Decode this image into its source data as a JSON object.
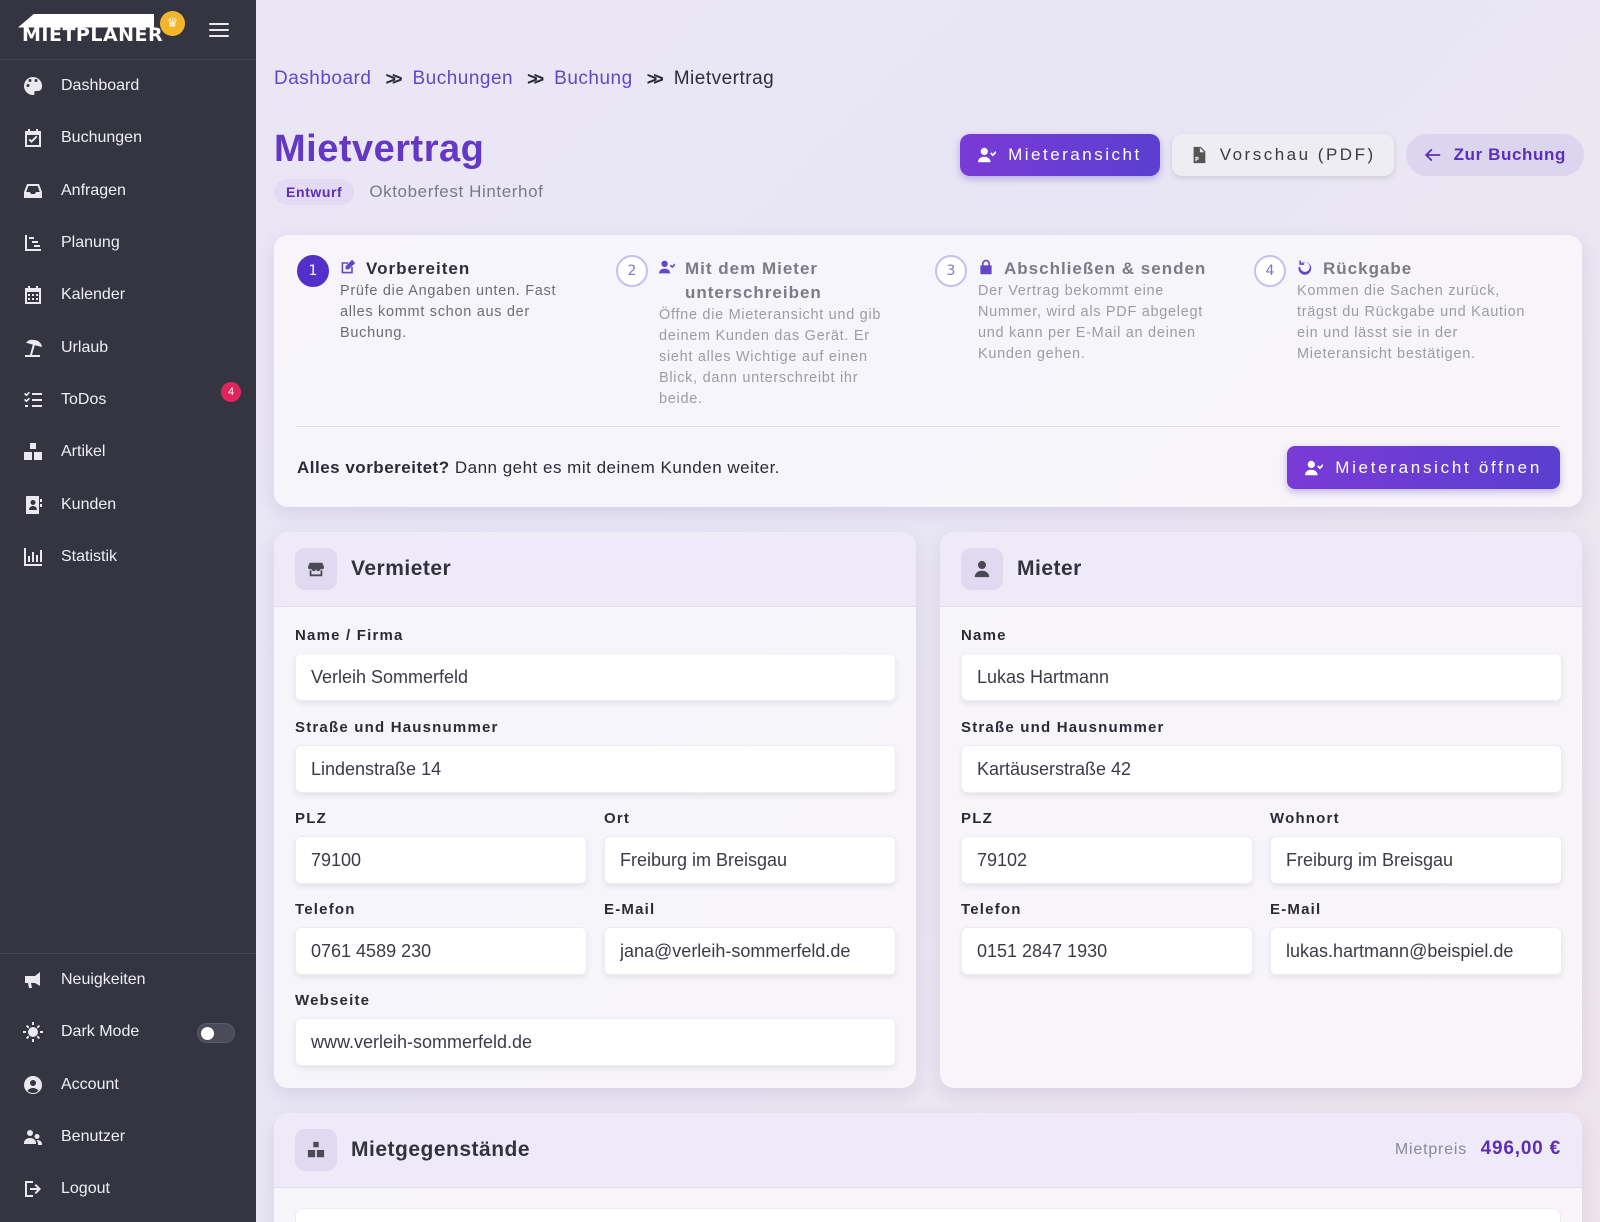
{
  "brand": {
    "name": "MIETPLANER",
    "crown_icon": "crown-icon"
  },
  "sidebar": {
    "items": [
      {
        "label": "Dashboard",
        "icon": "palette-icon"
      },
      {
        "label": "Buchungen",
        "icon": "calendar-check-icon"
      },
      {
        "label": "Anfragen",
        "icon": "inbox-icon"
      },
      {
        "label": "Planung",
        "icon": "gantt-icon"
      },
      {
        "label": "Kalender",
        "icon": "calendar-icon"
      },
      {
        "label": "Urlaub",
        "icon": "beach-umbrella-icon"
      },
      {
        "label": "ToDos",
        "icon": "checklist-icon",
        "badge": "4"
      },
      {
        "label": "Artikel",
        "icon": "boxes-icon"
      },
      {
        "label": "Kunden",
        "icon": "contact-card-icon"
      },
      {
        "label": "Statistik",
        "icon": "bar-chart-icon"
      }
    ],
    "bottom_items": [
      {
        "label": "Neuigkeiten",
        "icon": "megaphone-icon"
      },
      {
        "label": "Dark Mode",
        "icon": "sun-icon"
      },
      {
        "label": "Account",
        "icon": "user-circle-icon"
      },
      {
        "label": "Benutzer",
        "icon": "users-cog-icon"
      },
      {
        "label": "Logout",
        "icon": "logout-icon"
      }
    ]
  },
  "breadcrumb": [
    "Dashboard",
    "Buchungen",
    "Buchung",
    "Mietvertrag"
  ],
  "header": {
    "title": "Mietvertrag",
    "status": "Entwurf",
    "event": "Oktoberfest Hinterhof",
    "actions": {
      "tenant_view": "Mieteransicht",
      "preview_pdf": "Vorschau (PDF)",
      "back_to_booking": "Zur Buchung"
    }
  },
  "steps": [
    {
      "number": "1",
      "title": "Vorbereiten",
      "description": "Prüfe die Angaben unten. Fast alles kommt schon aus der Buchung."
    },
    {
      "number": "2",
      "title": "Mit dem Mieter unterschreiben",
      "description": "Öffne die Mieteransicht und gib deinem Kunden das Gerät. Er sieht alles Wichtige auf einen Blick, dann unterschreibt ihr beide."
    },
    {
      "number": "3",
      "title": "Abschließen & senden",
      "description": "Der Vertrag bekommt eine Nummer, wird als PDF abgelegt und kann per E-Mail an deinen Kunden gehen."
    },
    {
      "number": "4",
      "title": "Rückgabe",
      "description": "Kommen die Sachen zurück, trägst du Rückgabe und Kaution ein und lässt sie in der Mieteransicht bestätigen."
    }
  ],
  "ready": {
    "bold": "Alles vorbereitet?",
    "text": " Dann geht es mit deinem Kunden weiter.",
    "button": "Mieteransicht öffnen"
  },
  "landlord": {
    "title": "Vermieter",
    "labels": {
      "name": "Name / Firma",
      "street": "Straße und Hausnummer",
      "zip": "PLZ",
      "city": "Ort",
      "phone": "Telefon",
      "email": "E-Mail",
      "website": "Webseite"
    },
    "values": {
      "name": "Verleih Sommerfeld",
      "street": "Lindenstraße 14",
      "zip": "79100",
      "city": "Freiburg im Breisgau",
      "phone": "0761 4589 230",
      "email": "jana@verleih-sommerfeld.de",
      "website": "www.verleih-sommerfeld.de"
    }
  },
  "tenant": {
    "title": "Mieter",
    "labels": {
      "name": "Name",
      "street": "Straße und Hausnummer",
      "zip": "PLZ",
      "city": "Wohnort",
      "phone": "Telefon",
      "email": "E-Mail"
    },
    "values": {
      "name": "Lukas Hartmann",
      "street": "Kartäuserstraße 42",
      "zip": "79102",
      "city": "Freiburg im Breisgau",
      "phone": "0151 2847 1930",
      "email": "lukas.hartmann@beispiel.de"
    }
  },
  "items_section": {
    "title": "Mietgegenstände",
    "price_label": "Mietpreis",
    "price_value": "496,00 €"
  },
  "colors": {
    "accent": "#6338c4",
    "sidebar_bg": "#353542",
    "badge": "#e0245e",
    "crown": "#f3b62b"
  }
}
